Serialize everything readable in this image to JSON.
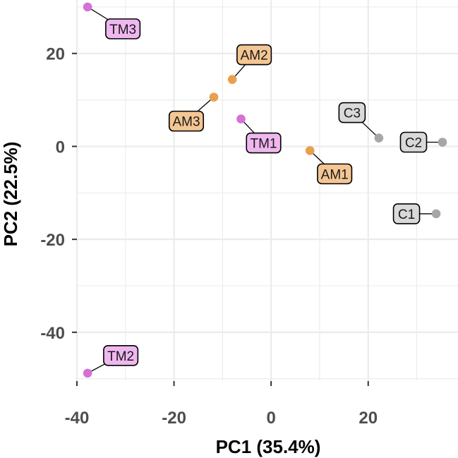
{
  "chart_data": {
    "type": "scatter",
    "xlabel": "PC1 (35.4%)",
    "ylabel": "PC2 (22.5%)",
    "xlim": [
      -40,
      38.5
    ],
    "ylim": [
      -50.5,
      31.5
    ],
    "x_ticks": [
      -40,
      -20,
      0,
      20
    ],
    "y_ticks": [
      -40,
      -20,
      0,
      20
    ],
    "x_tick_labels": [
      "-40",
      "-20",
      "0",
      "20"
    ],
    "y_tick_labels": [
      "-40",
      "-20",
      "0",
      "20"
    ],
    "grid": true,
    "legend": "none",
    "groups": {
      "TM": "#d670d6",
      "AM": "#e9a04e",
      "C": "#a6a6a6"
    },
    "label_fills": {
      "TM": "#efb7ef",
      "AM": "#f4c693",
      "C": "#d9d9d9"
    },
    "points": [
      {
        "label": "TM3",
        "group": "TM",
        "x": -37.8,
        "y": 30.0
      },
      {
        "label": "AM2",
        "group": "AM",
        "x": -8.0,
        "y": 14.4
      },
      {
        "label": "AM3",
        "group": "AM",
        "x": -11.8,
        "y": 10.6
      },
      {
        "label": "TM1",
        "group": "TM",
        "x": -6.2,
        "y": 5.9
      },
      {
        "label": "AM1",
        "group": "AM",
        "x": 8.0,
        "y": -0.9
      },
      {
        "label": "C3",
        "group": "C",
        "x": 22.2,
        "y": 1.8
      },
      {
        "label": "C2",
        "group": "C",
        "x": 35.3,
        "y": 0.9
      },
      {
        "label": "C1",
        "group": "C",
        "x": 34.0,
        "y": -14.5
      },
      {
        "label": "TM2",
        "group": "TM",
        "x": -37.8,
        "y": -48.8
      }
    ]
  }
}
